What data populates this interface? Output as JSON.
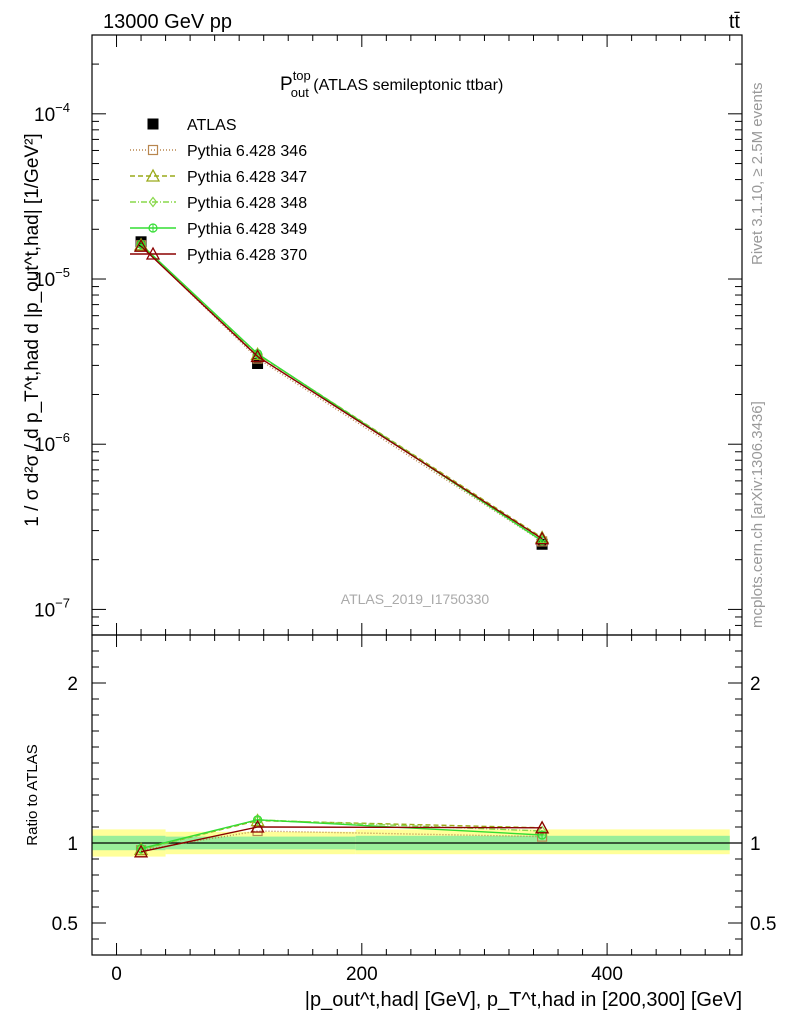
{
  "header": {
    "energy": "13000 GeV pp",
    "process": "tt̄"
  },
  "side_labels": {
    "rivet": "Rivet 3.1.10, ≥ 2.5M events",
    "mcplots": "mcplots.cern.ch [arXiv:1306.3436]"
  },
  "chart_data": {
    "type": "line",
    "title": {
      "main": "P",
      "sup": "top",
      "sub": "out",
      "rest": " (ATLAS semileptonic ttbar)"
    },
    "analysis_id": "ATLAS_2019_I1750330",
    "xlabel": "|p_out^t,had| [GeV], p_T^t,had in [200,300] [GeV]",
    "ylabel": "1 / σ d²σ / d p_T^t,had d |p_out^t,had| [1/GeV²]",
    "ratio_ylabel": "Ratio to ATLAS",
    "xlim": [
      -20,
      510
    ],
    "ylim": [
      7e-08,
      0.0003
    ],
    "yscale": "log",
    "ratio_ylim": [
      0.3,
      2.3
    ],
    "x_ticks": [
      0,
      200,
      400
    ],
    "y_ticks": [
      {
        "value": 1e-07,
        "base": "10",
        "exp": "−7"
      },
      {
        "value": 1e-06,
        "base": "10",
        "exp": "−6"
      },
      {
        "value": 1e-05,
        "base": "10",
        "exp": "−5"
      },
      {
        "value": 0.0001,
        "base": "10",
        "exp": "−4"
      }
    ],
    "ratio_ticks": [
      {
        "value": 0.5,
        "label": "0.5"
      },
      {
        "value": 1,
        "label": "1"
      },
      {
        "value": 2,
        "label": "2"
      }
    ],
    "bins": [
      {
        "lo": -20,
        "hi": 40,
        "x": 20,
        "y": 1.68e-05,
        "band_inner": [
          0.955,
          1.045
        ],
        "band_outer": [
          0.915,
          1.085
        ]
      },
      {
        "lo": 40,
        "hi": 195,
        "x": 115,
        "y": 3.08e-06,
        "band_inner": [
          0.96,
          1.04
        ],
        "band_outer": [
          0.93,
          1.07
        ]
      },
      {
        "lo": 195,
        "hi": 500,
        "x": 347,
        "y": 2.48e-07,
        "band_inner": [
          0.955,
          1.045
        ],
        "band_outer": [
          0.93,
          1.085
        ]
      }
    ],
    "legend_position": "top-left",
    "series": [
      {
        "name": "ATLAS",
        "color": "#000000",
        "dash": "",
        "marker": "square",
        "x": [
          20,
          115,
          347
        ],
        "y": [
          1.68e-05,
          3.08e-06,
          2.48e-07
        ],
        "ratio": [
          1,
          1,
          1
        ]
      },
      {
        "name": "Pythia 6.428 346",
        "color": "#b8864e",
        "dash": "1,2",
        "marker": "square-open",
        "x": [
          20,
          115,
          347
        ],
        "y": [
          1.6e-05,
          3.3e-06,
          2.58e-07
        ],
        "ratio": [
          0.955,
          1.075,
          1.04
        ]
      },
      {
        "name": "Pythia 6.428 347",
        "color": "#9aaa1a",
        "dash": "5,3",
        "marker": "triangle-open",
        "x": [
          20,
          115,
          347
        ],
        "y": [
          1.61e-05,
          3.5e-06,
          2.72e-07
        ],
        "ratio": [
          0.96,
          1.14,
          1.095
        ]
      },
      {
        "name": "Pythia 6.428 348",
        "color": "#88d84a",
        "dash": "6,2,1,2",
        "marker": "diamond-open",
        "x": [
          20,
          115,
          347
        ],
        "y": [
          1.61e-05,
          3.52e-06,
          2.66e-07
        ],
        "ratio": [
          0.96,
          1.145,
          1.075
        ]
      },
      {
        "name": "Pythia 6.428 349",
        "color": "#33dd33",
        "dash": "",
        "marker": "circle-cross",
        "x": [
          20,
          115,
          347
        ],
        "y": [
          1.62e-05,
          3.53e-06,
          2.6e-07
        ],
        "ratio": [
          0.965,
          1.145,
          1.05
        ]
      },
      {
        "name": "Pythia 6.428 370",
        "color": "#8b0000",
        "dash": "",
        "marker": "triangle-open",
        "x": [
          20,
          115,
          347
        ],
        "y": [
          1.58e-05,
          3.4e-06,
          2.68e-07
        ],
        "ratio": [
          0.945,
          1.1,
          1.095
        ]
      }
    ]
  }
}
